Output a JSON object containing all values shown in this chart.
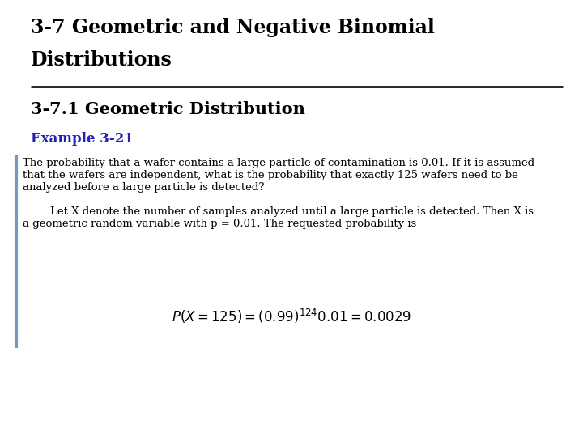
{
  "title_line1": "3-7 Geometric and Negative Binomial",
  "title_line2": "Distributions",
  "subtitle": "3-7.1 Geometric Distribution",
  "example_label": "Example 3-21",
  "example_color": "#2222BB",
  "bg_color": "#ffffff",
  "title_fontsize": 17,
  "subtitle_fontsize": 15,
  "example_fontsize": 12,
  "body_fontsize": 9.5,
  "formula_fontsize": 12,
  "sidebar_color": "#7799BB",
  "hr_color": "#111111",
  "body_text_1a": "The probability that a wafer contains a large particle of contamination is 0.01. If it is assumed",
  "body_text_1b": "that the wafers are independent, what is the probability that exactly 125 wafers need to be",
  "body_text_1c": "analyzed before a large particle is detected?",
  "body_text_2a": "        Let X denote the number of samples analyzed until a large particle is detected. Then X is",
  "body_text_2b": "a geometric random variable with p = 0.01. The requested probability is"
}
